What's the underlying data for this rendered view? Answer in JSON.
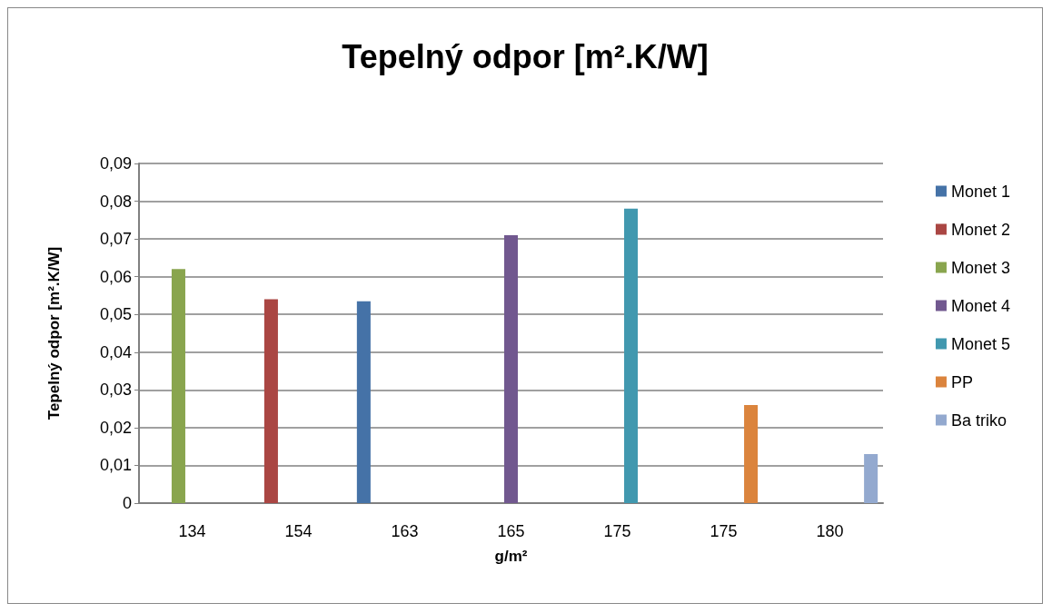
{
  "chart_data": {
    "type": "bar",
    "title": "Tepelný odpor [m².K/W]",
    "xlabel": "g/m²",
    "ylabel": "Tepelný odpor [m².K/W]",
    "categories": [
      "134",
      "154",
      "163",
      "165",
      "175",
      "175",
      "180"
    ],
    "series": [
      {
        "name": "Monet 1",
        "color": "#4572a7",
        "values": [
          null,
          null,
          0.0535,
          null,
          null,
          null,
          null
        ]
      },
      {
        "name": "Monet 2",
        "color": "#aa4643",
        "values": [
          null,
          0.054,
          null,
          null,
          null,
          null,
          null
        ]
      },
      {
        "name": "Monet 3",
        "color": "#89a54e",
        "values": [
          0.062,
          null,
          null,
          null,
          null,
          null,
          null
        ]
      },
      {
        "name": "Monet 4",
        "color": "#71588f",
        "values": [
          null,
          null,
          null,
          0.071,
          null,
          null,
          null
        ]
      },
      {
        "name": "Monet 5",
        "color": "#4198af",
        "values": [
          null,
          null,
          null,
          null,
          0.078,
          null,
          null
        ]
      },
      {
        "name": "PP",
        "color": "#db843d",
        "values": [
          null,
          null,
          null,
          null,
          null,
          0.026,
          null
        ]
      },
      {
        "name": "Ba triko",
        "color": "#93a9cf",
        "values": [
          null,
          null,
          null,
          null,
          null,
          null,
          0.013
        ]
      }
    ],
    "ylim": [
      0,
      0.09
    ],
    "yticks": [
      0,
      {
        "value": 0.01,
        "label": "0,01"
      },
      {
        "value": 0.02,
        "label": "0,02"
      },
      {
        "value": 0.03,
        "label": "0,03"
      },
      {
        "value": 0.04,
        "label": "0,04"
      },
      {
        "value": 0.05,
        "label": "0,05"
      },
      {
        "value": 0.06,
        "label": "0,06"
      },
      {
        "value": 0.07,
        "label": "0,07"
      },
      {
        "value": 0.08,
        "label": "0,08"
      },
      {
        "value": 0.09,
        "label": "0,09"
      }
    ],
    "grid": "y",
    "legend": "right"
  }
}
